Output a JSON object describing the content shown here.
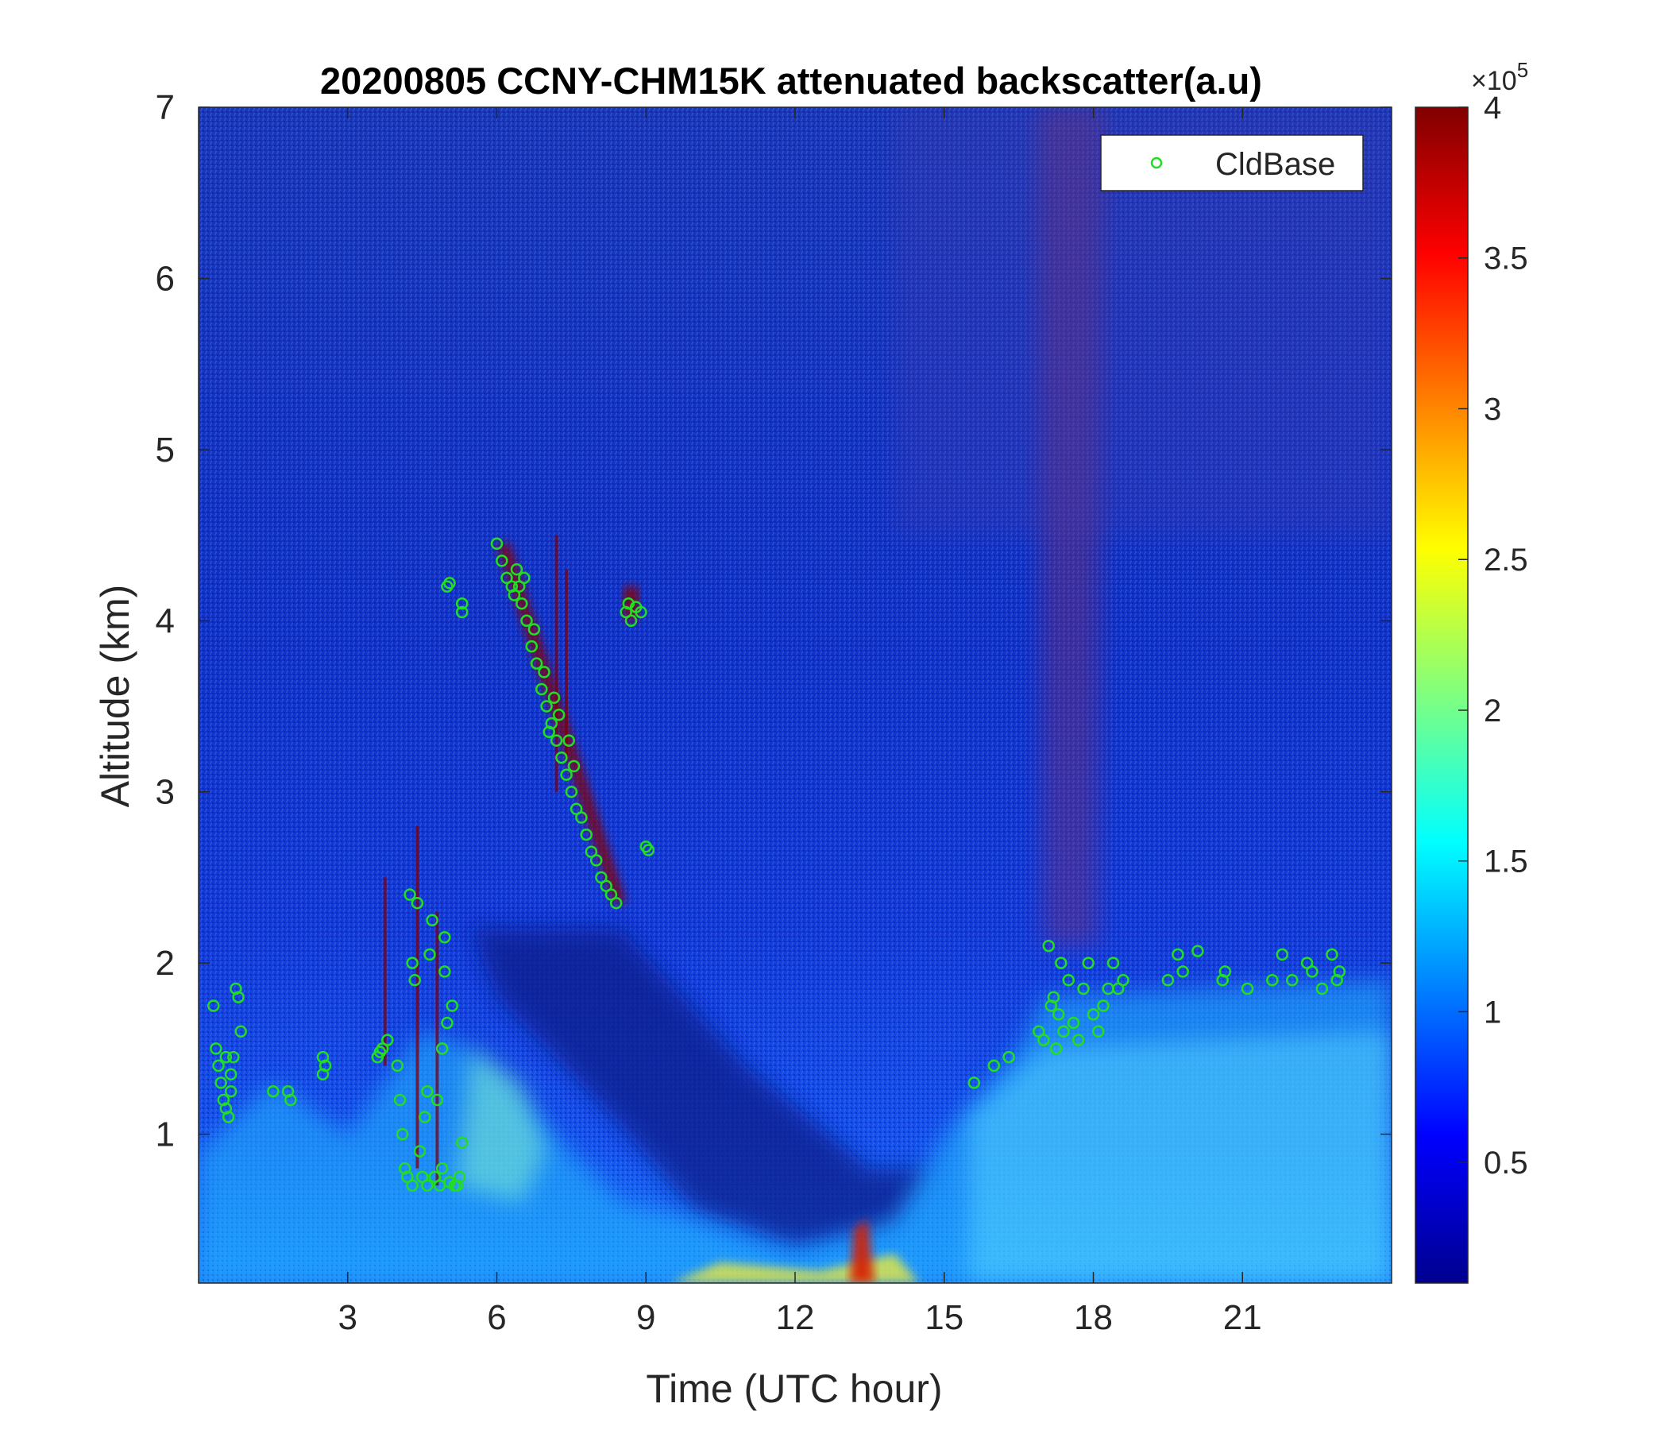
{
  "chart_data": {
    "type": "heatmap",
    "title": "20200805 CCNY-CHM15K attenuated backscatter(a.u)",
    "xlabel": "Time (UTC hour)",
    "ylabel": "Altitude (km)",
    "xlim": [
      0,
      24
    ],
    "ylim": [
      0.13,
      7
    ],
    "xticks": [
      3,
      6,
      9,
      12,
      15,
      18,
      21
    ],
    "yticks": [
      1,
      2,
      3,
      4,
      5,
      6,
      7
    ],
    "colorbar": {
      "colormap": "jet",
      "clim": [
        10000,
        400000
      ],
      "ticks": [
        0.5,
        1,
        1.5,
        2,
        2.5,
        3,
        3.5,
        4
      ],
      "tick_labels": [
        "0.5",
        "1",
        "1.5",
        "2",
        "2.5",
        "3",
        "3.5",
        "4"
      ],
      "multiplier_base": "×10",
      "multiplier_exp": "5"
    },
    "legend": {
      "position": "top-right",
      "entries": [
        "CldBase"
      ]
    },
    "marker_color": "#22dd22",
    "series": [
      {
        "name": "CldBase",
        "marker": "open-circle",
        "points": [
          [
            0.3,
            1.75
          ],
          [
            0.35,
            1.5
          ],
          [
            0.4,
            1.4
          ],
          [
            0.45,
            1.3
          ],
          [
            0.5,
            1.2
          ],
          [
            0.55,
            1.15
          ],
          [
            0.6,
            1.1
          ],
          [
            0.65,
            1.35
          ],
          [
            0.7,
            1.45
          ],
          [
            0.75,
            1.85
          ],
          [
            0.8,
            1.8
          ],
          [
            0.85,
            1.6
          ],
          [
            0.65,
            1.25
          ],
          [
            0.55,
            1.45
          ],
          [
            1.5,
            1.25
          ],
          [
            1.8,
            1.25
          ],
          [
            1.85,
            1.2
          ],
          [
            2.5,
            1.45
          ],
          [
            2.55,
            1.4
          ],
          [
            2.5,
            1.35
          ],
          [
            3.6,
            1.45
          ],
          [
            3.7,
            1.5
          ],
          [
            3.8,
            1.55
          ],
          [
            3.65,
            1.48
          ],
          [
            4.0,
            1.4
          ],
          [
            4.05,
            1.2
          ],
          [
            4.1,
            1.0
          ],
          [
            4.15,
            0.8
          ],
          [
            4.2,
            0.75
          ],
          [
            4.25,
            2.4
          ],
          [
            4.3,
            2.0
          ],
          [
            4.35,
            1.9
          ],
          [
            4.4,
            2.35
          ],
          [
            4.45,
            0.9
          ],
          [
            4.5,
            0.75
          ],
          [
            4.55,
            1.1
          ],
          [
            4.6,
            0.7
          ],
          [
            4.65,
            2.05
          ],
          [
            4.7,
            2.25
          ],
          [
            4.75,
            0.75
          ],
          [
            4.8,
            1.2
          ],
          [
            4.85,
            0.7
          ],
          [
            4.9,
            1.5
          ],
          [
            4.95,
            1.95
          ],
          [
            5.0,
            1.65
          ],
          [
            5.05,
            0.72
          ],
          [
            5.1,
            1.75
          ],
          [
            5.15,
            0.7
          ],
          [
            5.2,
            0.7
          ],
          [
            5.25,
            0.75
          ],
          [
            4.3,
            0.7
          ],
          [
            4.6,
            1.25
          ],
          [
            4.9,
            0.8
          ],
          [
            5.3,
            0.95
          ],
          [
            4.95,
            2.15
          ],
          [
            5.0,
            4.2
          ],
          [
            5.05,
            4.22
          ],
          [
            5.3,
            4.05
          ],
          [
            5.3,
            4.1
          ],
          [
            6.0,
            4.45
          ],
          [
            6.1,
            4.35
          ],
          [
            6.2,
            4.25
          ],
          [
            6.3,
            4.2
          ],
          [
            6.4,
            4.3
          ],
          [
            6.5,
            4.1
          ],
          [
            6.6,
            4.0
          ],
          [
            6.7,
            3.85
          ],
          [
            6.8,
            3.75
          ],
          [
            6.9,
            3.6
          ],
          [
            7.0,
            3.5
          ],
          [
            7.1,
            3.4
          ],
          [
            7.2,
            3.3
          ],
          [
            7.3,
            3.2
          ],
          [
            7.4,
            3.1
          ],
          [
            7.5,
            3.0
          ],
          [
            7.6,
            2.9
          ],
          [
            7.7,
            2.85
          ],
          [
            7.8,
            2.75
          ],
          [
            7.9,
            2.65
          ],
          [
            8.0,
            2.6
          ],
          [
            8.1,
            2.5
          ],
          [
            8.2,
            2.45
          ],
          [
            8.3,
            2.4
          ],
          [
            8.4,
            2.35
          ],
          [
            7.05,
            3.35
          ],
          [
            7.25,
            3.45
          ],
          [
            7.45,
            3.3
          ],
          [
            7.55,
            3.15
          ],
          [
            7.15,
            3.55
          ],
          [
            6.95,
            3.7
          ],
          [
            6.75,
            3.95
          ],
          [
            6.35,
            4.15
          ],
          [
            6.55,
            4.25
          ],
          [
            6.45,
            4.2
          ],
          [
            8.6,
            4.05
          ],
          [
            8.7,
            4.0
          ],
          [
            8.8,
            4.08
          ],
          [
            8.9,
            4.05
          ],
          [
            8.65,
            4.1
          ],
          [
            9.0,
            2.68
          ],
          [
            9.05,
            2.66
          ],
          [
            15.6,
            1.3
          ],
          [
            16.0,
            1.4
          ],
          [
            16.3,
            1.45
          ],
          [
            16.9,
            1.6
          ],
          [
            17.0,
            1.55
          ],
          [
            17.1,
            2.1
          ],
          [
            17.2,
            1.8
          ],
          [
            17.3,
            1.7
          ],
          [
            17.4,
            1.6
          ],
          [
            17.5,
            1.9
          ],
          [
            17.6,
            1.65
          ],
          [
            17.7,
            1.55
          ],
          [
            17.8,
            1.85
          ],
          [
            17.9,
            2.0
          ],
          [
            18.0,
            1.7
          ],
          [
            18.1,
            1.6
          ],
          [
            18.2,
            1.75
          ],
          [
            18.3,
            1.85
          ],
          [
            18.4,
            2.0
          ],
          [
            18.5,
            1.85
          ],
          [
            18.6,
            1.9
          ],
          [
            17.35,
            2.0
          ],
          [
            17.15,
            1.75
          ],
          [
            17.25,
            1.5
          ],
          [
            19.5,
            1.9
          ],
          [
            19.7,
            2.05
          ],
          [
            19.8,
            1.95
          ],
          [
            20.1,
            2.07
          ],
          [
            20.6,
            1.9
          ],
          [
            20.65,
            1.95
          ],
          [
            21.1,
            1.85
          ],
          [
            21.6,
            1.9
          ],
          [
            21.8,
            2.05
          ],
          [
            22.0,
            1.9
          ],
          [
            22.3,
            2.0
          ],
          [
            22.4,
            1.95
          ],
          [
            22.6,
            1.85
          ],
          [
            22.8,
            2.05
          ],
          [
            22.9,
            1.9
          ],
          [
            22.95,
            1.95
          ]
        ]
      }
    ]
  }
}
